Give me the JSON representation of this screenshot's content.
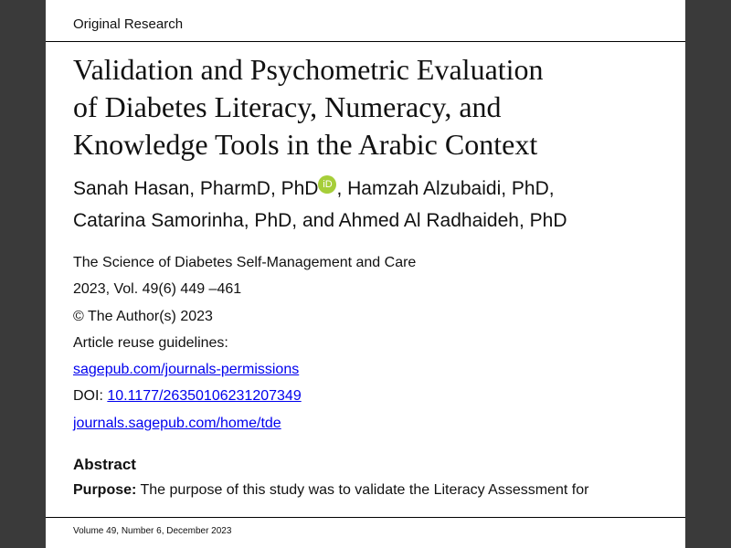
{
  "category": "Original Research",
  "title_lines": [
    "Validation and Psychometric Evaluation",
    "of Diabetes Literacy, Numeracy, and",
    "Knowledge Tools in the Arabic Context"
  ],
  "authors": {
    "line1_a": "Sanah Hasan, PharmD, PhD",
    "orcid": "iD",
    "line1_b": ", Hamzah Alzubaidi, PhD,",
    "line2": "Catarina Samorinha, PhD, and Ahmed Al Radhaideh, PhD"
  },
  "meta": {
    "journal": "The Science of Diabetes Self-Management and Care",
    "volume": "2023, Vol. 49(6) 449 –461",
    "copyright": "© The Author(s) 2023",
    "reuse": "Article reuse guidelines:",
    "reuse_link": "sagepub.com/journals-permissions",
    "doi_label": "DOI: ",
    "doi_link": "10.1177/26350106231207349",
    "home_link": "journals.sagepub.com/home/tde"
  },
  "abstract": {
    "heading": "Abstract",
    "purpose_label": "Purpose:",
    "purpose_text": " The purpose of this study was to validate the Literacy Assessment for"
  },
  "footer": "Volume 49, Number 6, December 2023",
  "colors": {
    "link": "#0000ee",
    "orcid": "#a6ce39",
    "background": "#3a3a3a"
  }
}
